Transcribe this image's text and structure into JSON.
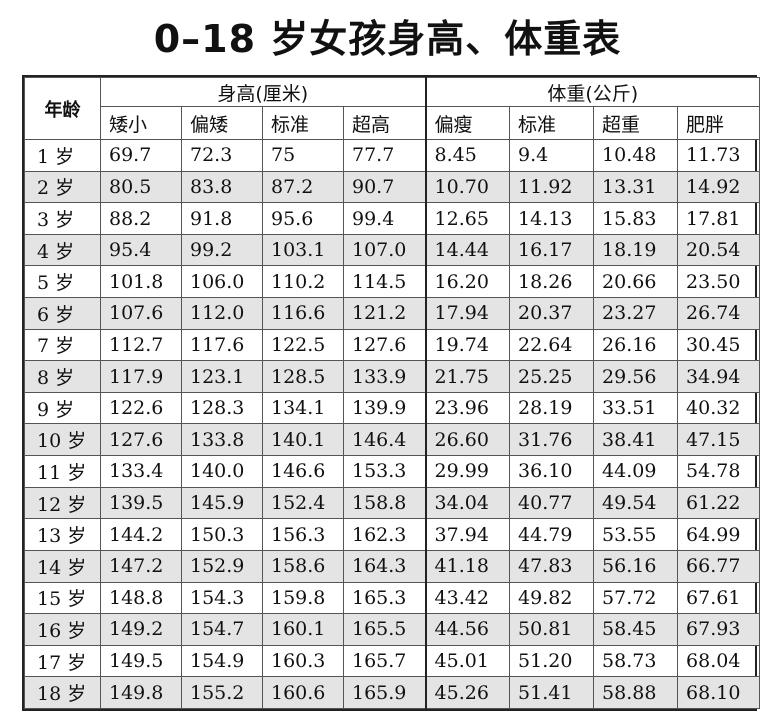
{
  "title": "0–18 岁女孩身高、体重表",
  "header": {
    "age_label": "年龄",
    "height_group": "身高(厘米)",
    "weight_group": "体重(公斤)",
    "height_cols": [
      "矮小",
      "偏矮",
      "标准",
      "超高"
    ],
    "weight_cols": [
      "偏瘦",
      "标准",
      "超重",
      "肥胖"
    ]
  },
  "rows": [
    {
      "age": "1 岁",
      "h": [
        "69.7",
        "72.3",
        "75",
        "77.7"
      ],
      "w": [
        "8.45",
        "9.4",
        "10.48",
        "11.73"
      ]
    },
    {
      "age": "2 岁",
      "h": [
        "80.5",
        "83.8",
        "87.2",
        "90.7"
      ],
      "w": [
        "10.70",
        "11.92",
        "13.31",
        "14.92"
      ]
    },
    {
      "age": "3 岁",
      "h": [
        "88.2",
        "91.8",
        "95.6",
        "99.4"
      ],
      "w": [
        "12.65",
        "14.13",
        "15.83",
        "17.81"
      ]
    },
    {
      "age": "4 岁",
      "h": [
        "95.4",
        "99.2",
        "103.1",
        "107.0"
      ],
      "w": [
        "14.44",
        "16.17",
        "18.19",
        "20.54"
      ]
    },
    {
      "age": "5 岁",
      "h": [
        "101.8",
        "106.0",
        "110.2",
        "114.5"
      ],
      "w": [
        "16.20",
        "18.26",
        "20.66",
        "23.50"
      ]
    },
    {
      "age": "6 岁",
      "h": [
        "107.6",
        "112.0",
        "116.6",
        "121.2"
      ],
      "w": [
        "17.94",
        "20.37",
        "23.27",
        "26.74"
      ]
    },
    {
      "age": "7 岁",
      "h": [
        "112.7",
        "117.6",
        "122.5",
        "127.6"
      ],
      "w": [
        "19.74",
        "22.64",
        "26.16",
        "30.45"
      ]
    },
    {
      "age": "8 岁",
      "h": [
        "117.9",
        "123.1",
        "128.5",
        "133.9"
      ],
      "w": [
        "21.75",
        "25.25",
        "29.56",
        "34.94"
      ]
    },
    {
      "age": "9 岁",
      "h": [
        "122.6",
        "128.3",
        "134.1",
        "139.9"
      ],
      "w": [
        "23.96",
        "28.19",
        "33.51",
        "40.32"
      ]
    },
    {
      "age": "10 岁",
      "h": [
        "127.6",
        "133.8",
        "140.1",
        "146.4"
      ],
      "w": [
        "26.60",
        "31.76",
        "38.41",
        "47.15"
      ]
    },
    {
      "age": "11 岁",
      "h": [
        "133.4",
        "140.0",
        "146.6",
        "153.3"
      ],
      "w": [
        "29.99",
        "36.10",
        "44.09",
        "54.78"
      ]
    },
    {
      "age": "12 岁",
      "h": [
        "139.5",
        "145.9",
        "152.4",
        "158.8"
      ],
      "w": [
        "34.04",
        "40.77",
        "49.54",
        "61.22"
      ]
    },
    {
      "age": "13 岁",
      "h": [
        "144.2",
        "150.3",
        "156.3",
        "162.3"
      ],
      "w": [
        "37.94",
        "44.79",
        "53.55",
        "64.99"
      ]
    },
    {
      "age": "14 岁",
      "h": [
        "147.2",
        "152.9",
        "158.6",
        "164.3"
      ],
      "w": [
        "41.18",
        "47.83",
        "56.16",
        "66.77"
      ]
    },
    {
      "age": "15 岁",
      "h": [
        "148.8",
        "154.3",
        "159.8",
        "165.3"
      ],
      "w": [
        "43.42",
        "49.82",
        "57.72",
        "67.61"
      ]
    },
    {
      "age": "16 岁",
      "h": [
        "149.2",
        "154.7",
        "160.1",
        "165.5"
      ],
      "w": [
        "44.56",
        "50.81",
        "58.45",
        "67.93"
      ]
    },
    {
      "age": "17 岁",
      "h": [
        "149.5",
        "154.9",
        "160.3",
        "165.7"
      ],
      "w": [
        "45.01",
        "51.20",
        "58.73",
        "68.04"
      ]
    },
    {
      "age": "18 岁",
      "h": [
        "149.8",
        "155.2",
        "160.6",
        "165.9"
      ],
      "w": [
        "45.26",
        "51.41",
        "58.88",
        "68.10"
      ]
    }
  ],
  "colors": {
    "shade": "#e4e4e4",
    "border": "#222222"
  }
}
